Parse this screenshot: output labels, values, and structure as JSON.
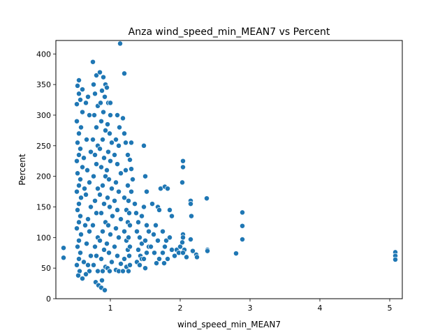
{
  "chart_data": {
    "type": "scatter",
    "title": "Anza wind_speed_min_MEAN7 vs Percent",
    "xlabel": "wind_speed_min_MEAN7",
    "ylabel": "Percent",
    "xlim": [
      0.22,
      5.18
    ],
    "ylim": [
      0,
      422
    ],
    "xticks": [
      1,
      2,
      3,
      4,
      5
    ],
    "xtick_labels": [
      "1",
      "2",
      "3",
      "4",
      "5"
    ],
    "yticks": [
      0,
      50,
      100,
      150,
      200,
      250,
      300,
      350,
      400
    ],
    "ytick_labels": [
      "0",
      "50",
      "100",
      "150",
      "200",
      "250",
      "300",
      "350",
      "400"
    ],
    "grid": false,
    "marker_color": "#1f77b4",
    "series": [
      {
        "values": [
          [
            0.33,
            83
          ],
          [
            0.33,
            67
          ],
          [
            0.55,
            357
          ],
          [
            0.53,
            348
          ],
          [
            0.6,
            342
          ],
          [
            0.55,
            335
          ],
          [
            0.57,
            325
          ],
          [
            0.52,
            318
          ],
          [
            0.6,
            305
          ],
          [
            0.52,
            290
          ],
          [
            0.58,
            280
          ],
          [
            0.55,
            270
          ],
          [
            0.53,
            255
          ],
          [
            0.57,
            245
          ],
          [
            0.55,
            235
          ],
          [
            0.52,
            225
          ],
          [
            0.6,
            215
          ],
          [
            0.53,
            205
          ],
          [
            0.57,
            195
          ],
          [
            0.55,
            185
          ],
          [
            0.52,
            175
          ],
          [
            0.58,
            165
          ],
          [
            0.55,
            155
          ],
          [
            0.53,
            145
          ],
          [
            0.57,
            135
          ],
          [
            0.55,
            125
          ],
          [
            0.52,
            115
          ],
          [
            0.58,
            105
          ],
          [
            0.55,
            95
          ],
          [
            0.53,
            85
          ],
          [
            0.57,
            75
          ],
          [
            0.55,
            65
          ],
          [
            0.52,
            55
          ],
          [
            0.56,
            45
          ],
          [
            0.54,
            38
          ],
          [
            0.6,
            33
          ],
          [
            0.65,
            320
          ],
          [
            0.7,
            300
          ],
          [
            0.68,
            330
          ],
          [
            0.66,
            260
          ],
          [
            0.72,
            240
          ],
          [
            0.67,
            210
          ],
          [
            0.7,
            190
          ],
          [
            0.65,
            170
          ],
          [
            0.72,
            150
          ],
          [
            0.68,
            130
          ],
          [
            0.7,
            110
          ],
          [
            0.66,
            90
          ],
          [
            0.72,
            70
          ],
          [
            0.68,
            55
          ],
          [
            0.7,
            45
          ],
          [
            0.65,
            40
          ],
          [
            0.62,
            230
          ],
          [
            0.63,
            180
          ],
          [
            0.64,
            120
          ],
          [
            0.62,
            60
          ],
          [
            0.75,
            387
          ],
          [
            0.8,
            365
          ],
          [
            0.78,
            335
          ],
          [
            0.76,
            350
          ],
          [
            0.82,
            315
          ],
          [
            0.77,
            300
          ],
          [
            0.8,
            280
          ],
          [
            0.75,
            260
          ],
          [
            0.82,
            250
          ],
          [
            0.78,
            235
          ],
          [
            0.8,
            220
          ],
          [
            0.76,
            200
          ],
          [
            0.82,
            180
          ],
          [
            0.78,
            160
          ],
          [
            0.8,
            140
          ],
          [
            0.75,
            120
          ],
          [
            0.82,
            100
          ],
          [
            0.78,
            85
          ],
          [
            0.8,
            70
          ],
          [
            0.76,
            55
          ],
          [
            0.82,
            45
          ],
          [
            0.79,
            27
          ],
          [
            0.83,
            22
          ],
          [
            0.85,
            370
          ],
          [
            0.9,
            362
          ],
          [
            0.93,
            350
          ],
          [
            0.88,
            340
          ],
          [
            0.92,
            330
          ],
          [
            0.86,
            320
          ],
          [
            0.9,
            305
          ],
          [
            0.87,
            290
          ],
          [
            0.93,
            275
          ],
          [
            0.89,
            260
          ],
          [
            0.85,
            245
          ],
          [
            0.91,
            230
          ],
          [
            0.87,
            215
          ],
          [
            0.93,
            200
          ],
          [
            0.89,
            185
          ],
          [
            0.85,
            170
          ],
          [
            0.91,
            155
          ],
          [
            0.87,
            140
          ],
          [
            0.93,
            125
          ],
          [
            0.89,
            110
          ],
          [
            0.85,
            95
          ],
          [
            0.91,
            80
          ],
          [
            0.87,
            65
          ],
          [
            0.93,
            52
          ],
          [
            0.89,
            45
          ],
          [
            0.88,
            30
          ],
          [
            0.87,
            18
          ],
          [
            0.92,
            14
          ],
          [
            0.95,
            345
          ],
          [
            0.97,
            320
          ],
          [
            1.0,
            300
          ],
          [
            0.96,
            285
          ],
          [
            0.99,
            270
          ],
          [
            1.02,
            255
          ],
          [
            0.97,
            240
          ],
          [
            1.0,
            225
          ],
          [
            0.95,
            210
          ],
          [
            0.98,
            195
          ],
          [
            1.02,
            180
          ],
          [
            0.96,
            165
          ],
          [
            0.99,
            150
          ],
          [
            1.03,
            135
          ],
          [
            0.97,
            120
          ],
          [
            1.0,
            105
          ],
          [
            0.95,
            90
          ],
          [
            0.98,
            75
          ],
          [
            1.02,
            60
          ],
          [
            0.96,
            50
          ],
          [
            0.99,
            45
          ],
          [
            1.0,
            320
          ],
          [
            1.14,
            417
          ],
          [
            1.2,
            368
          ],
          [
            1.1,
            300
          ],
          [
            1.13,
            280
          ],
          [
            1.08,
            260
          ],
          [
            1.12,
            250
          ],
          [
            1.06,
            235
          ],
          [
            1.1,
            220
          ],
          [
            1.15,
            205
          ],
          [
            1.08,
            190
          ],
          [
            1.12,
            175
          ],
          [
            1.06,
            160
          ],
          [
            1.1,
            145
          ],
          [
            1.15,
            130
          ],
          [
            1.08,
            115
          ],
          [
            1.12,
            100
          ],
          [
            1.06,
            85
          ],
          [
            1.1,
            70
          ],
          [
            1.15,
            57
          ],
          [
            1.08,
            47
          ],
          [
            1.12,
            45
          ],
          [
            1.18,
            295
          ],
          [
            1.2,
            270
          ],
          [
            1.22,
            255
          ],
          [
            1.25,
            235
          ],
          [
            1.22,
            210
          ],
          [
            1.25,
            185
          ],
          [
            1.2,
            165
          ],
          [
            1.23,
            145
          ],
          [
            1.25,
            125
          ],
          [
            1.2,
            110
          ],
          [
            1.23,
            95
          ],
          [
            1.25,
            80
          ],
          [
            1.2,
            65
          ],
          [
            1.23,
            52
          ],
          [
            1.18,
            45
          ],
          [
            1.26,
            160
          ],
          [
            1.27,
            140
          ],
          [
            1.28,
            120
          ],
          [
            1.26,
            100
          ],
          [
            1.28,
            85
          ],
          [
            1.27,
            70
          ],
          [
            1.28,
            55
          ],
          [
            1.26,
            45
          ],
          [
            1.3,
            255
          ],
          [
            1.28,
            227
          ],
          [
            1.3,
            212
          ],
          [
            1.32,
            195
          ],
          [
            1.3,
            175
          ],
          [
            1.35,
            155
          ],
          [
            1.37,
            140
          ],
          [
            1.4,
            125
          ],
          [
            1.38,
            110
          ],
          [
            1.42,
            100
          ],
          [
            1.45,
            90
          ],
          [
            1.4,
            80
          ],
          [
            1.43,
            70
          ],
          [
            1.38,
            60
          ],
          [
            1.42,
            55
          ],
          [
            1.45,
            65
          ],
          [
            1.48,
            250
          ],
          [
            1.5,
            200
          ],
          [
            1.52,
            175
          ],
          [
            1.48,
            150
          ],
          [
            1.45,
            135
          ],
          [
            1.52,
            120
          ],
          [
            1.55,
            110
          ],
          [
            1.5,
            95
          ],
          [
            1.55,
            85
          ],
          [
            1.52,
            75
          ],
          [
            1.48,
            65
          ],
          [
            1.5,
            50
          ],
          [
            1.6,
            155
          ],
          [
            1.65,
            120
          ],
          [
            1.62,
            105
          ],
          [
            1.68,
            95
          ],
          [
            1.58,
            85
          ],
          [
            1.63,
            75
          ],
          [
            1.7,
            65
          ],
          [
            1.66,
            58
          ],
          [
            1.72,
            180
          ],
          [
            1.68,
            150
          ],
          [
            1.7,
            145
          ],
          [
            1.78,
            183
          ],
          [
            1.82,
            180
          ],
          [
            1.75,
            110
          ],
          [
            1.8,
            95
          ],
          [
            1.78,
            85
          ],
          [
            1.75,
            75
          ],
          [
            1.82,
            65
          ],
          [
            1.77,
            58
          ],
          [
            1.85,
            145
          ],
          [
            1.88,
            135
          ],
          [
            1.85,
            100
          ],
          [
            1.88,
            80
          ],
          [
            1.95,
            80
          ],
          [
            1.98,
            75
          ],
          [
            1.92,
            70
          ],
          [
            2.0,
            85
          ],
          [
            2.04,
            225
          ],
          [
            2.04,
            215
          ],
          [
            2.03,
            190
          ],
          [
            2.04,
            105
          ],
          [
            2.04,
            100
          ],
          [
            2.06,
            80
          ],
          [
            2.04,
            75
          ],
          [
            2.09,
            68
          ],
          [
            2.03,
            92
          ],
          [
            2.15,
            160
          ],
          [
            2.15,
            155
          ],
          [
            2.16,
            135
          ],
          [
            2.15,
            97
          ],
          [
            2.18,
            78
          ],
          [
            2.23,
            72
          ],
          [
            2.24,
            68
          ],
          [
            2.38,
            164
          ],
          [
            2.39,
            80
          ],
          [
            2.39,
            78
          ],
          [
            2.8,
            74
          ],
          [
            2.89,
            141
          ],
          [
            2.89,
            119
          ],
          [
            2.89,
            97
          ],
          [
            5.08,
            76
          ],
          [
            5.08,
            70
          ],
          [
            5.08,
            64
          ]
        ]
      }
    ]
  }
}
